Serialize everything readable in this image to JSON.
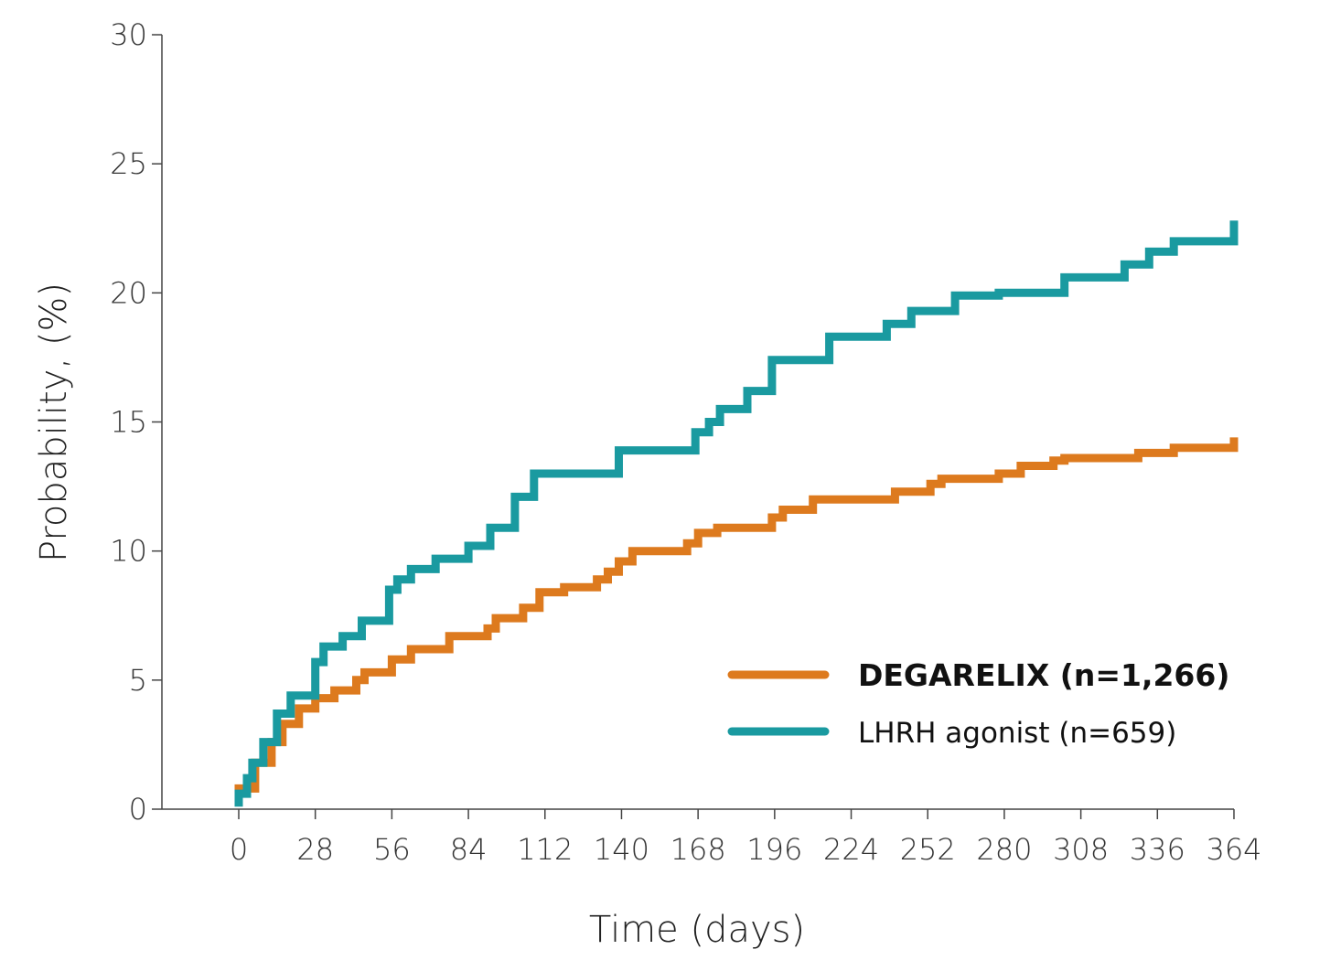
{
  "chart_data": {
    "type": "line",
    "step": true,
    "title": "",
    "xlabel": "Time (days)",
    "ylabel": "Probability, (%)",
    "xlim": [
      0,
      364
    ],
    "ylim": [
      0,
      30
    ],
    "xticks": [
      0,
      28,
      56,
      84,
      112,
      140,
      168,
      196,
      224,
      252,
      280,
      308,
      336,
      364
    ],
    "yticks": [
      0,
      5,
      10,
      15,
      20,
      25,
      30
    ],
    "grid": false,
    "legend_position": "bottom-right",
    "series": [
      {
        "name": "DEGARELIX (n=1,266)",
        "color": "#dd7a1e",
        "legend_bold": true,
        "points": [
          [
            0,
            0.3
          ],
          [
            0,
            0.8
          ],
          [
            6,
            0.8
          ],
          [
            6,
            1.8
          ],
          [
            12,
            1.8
          ],
          [
            12,
            2.6
          ],
          [
            16,
            2.6
          ],
          [
            16,
            3.3
          ],
          [
            22,
            3.3
          ],
          [
            22,
            3.9
          ],
          [
            28,
            3.9
          ],
          [
            28,
            4.3
          ],
          [
            35,
            4.3
          ],
          [
            35,
            4.6
          ],
          [
            43,
            4.6
          ],
          [
            43,
            5.0
          ],
          [
            46,
            5.0
          ],
          [
            46,
            5.3
          ],
          [
            56,
            5.3
          ],
          [
            56,
            5.8
          ],
          [
            63,
            5.8
          ],
          [
            63,
            6.2
          ],
          [
            77,
            6.2
          ],
          [
            77,
            6.7
          ],
          [
            91,
            6.7
          ],
          [
            91,
            7.0
          ],
          [
            94,
            7.0
          ],
          [
            94,
            7.4
          ],
          [
            104,
            7.4
          ],
          [
            104,
            7.8
          ],
          [
            110,
            7.8
          ],
          [
            110,
            8.4
          ],
          [
            119,
            8.4
          ],
          [
            119,
            8.6
          ],
          [
            131,
            8.6
          ],
          [
            131,
            8.9
          ],
          [
            135,
            8.9
          ],
          [
            135,
            9.2
          ],
          [
            139,
            9.2
          ],
          [
            139,
            9.6
          ],
          [
            144,
            9.6
          ],
          [
            144,
            10.0
          ],
          [
            164,
            10.0
          ],
          [
            164,
            10.3
          ],
          [
            168,
            10.3
          ],
          [
            168,
            10.7
          ],
          [
            175,
            10.7
          ],
          [
            175,
            10.9
          ],
          [
            195,
            10.9
          ],
          [
            195,
            11.3
          ],
          [
            199,
            11.3
          ],
          [
            199,
            11.6
          ],
          [
            210,
            11.6
          ],
          [
            210,
            12.0
          ],
          [
            240,
            12.0
          ],
          [
            240,
            12.3
          ],
          [
            253,
            12.3
          ],
          [
            253,
            12.6
          ],
          [
            257,
            12.6
          ],
          [
            257,
            12.8
          ],
          [
            278,
            12.8
          ],
          [
            278,
            13.0
          ],
          [
            286,
            13.0
          ],
          [
            286,
            13.3
          ],
          [
            298,
            13.3
          ],
          [
            298,
            13.5
          ],
          [
            302,
            13.5
          ],
          [
            302,
            13.6
          ],
          [
            329,
            13.6
          ],
          [
            329,
            13.8
          ],
          [
            342,
            13.8
          ],
          [
            342,
            14.0
          ],
          [
            364,
            14.0
          ],
          [
            364,
            14.4
          ]
        ]
      },
      {
        "name": "LHRH agonist (n=659)",
        "color": "#1a9aa0",
        "legend_bold": false,
        "points": [
          [
            0,
            0.1
          ],
          [
            0,
            0.6
          ],
          [
            3,
            0.6
          ],
          [
            3,
            1.2
          ],
          [
            5,
            1.2
          ],
          [
            5,
            1.8
          ],
          [
            9,
            1.8
          ],
          [
            9,
            2.6
          ],
          [
            14,
            2.6
          ],
          [
            14,
            3.7
          ],
          [
            19,
            3.7
          ],
          [
            19,
            4.4
          ],
          [
            28,
            4.4
          ],
          [
            28,
            5.7
          ],
          [
            31,
            5.7
          ],
          [
            31,
            6.3
          ],
          [
            38,
            6.3
          ],
          [
            38,
            6.7
          ],
          [
            45,
            6.7
          ],
          [
            45,
            7.3
          ],
          [
            55,
            7.3
          ],
          [
            55,
            8.5
          ],
          [
            58,
            8.5
          ],
          [
            58,
            8.9
          ],
          [
            63,
            8.9
          ],
          [
            63,
            9.3
          ],
          [
            72,
            9.3
          ],
          [
            72,
            9.7
          ],
          [
            84,
            9.7
          ],
          [
            84,
            10.2
          ],
          [
            92,
            10.2
          ],
          [
            92,
            10.9
          ],
          [
            101,
            10.9
          ],
          [
            101,
            12.1
          ],
          [
            108,
            12.1
          ],
          [
            108,
            13.0
          ],
          [
            139,
            13.0
          ],
          [
            139,
            13.9
          ],
          [
            167,
            13.9
          ],
          [
            167,
            14.6
          ],
          [
            172,
            14.6
          ],
          [
            172,
            15.0
          ],
          [
            176,
            15.0
          ],
          [
            176,
            15.5
          ],
          [
            186,
            15.5
          ],
          [
            186,
            16.2
          ],
          [
            195,
            16.2
          ],
          [
            195,
            17.4
          ],
          [
            216,
            17.4
          ],
          [
            216,
            18.3
          ],
          [
            237,
            18.3
          ],
          [
            237,
            18.8
          ],
          [
            246,
            18.8
          ],
          [
            246,
            19.3
          ],
          [
            262,
            19.3
          ],
          [
            262,
            19.9
          ],
          [
            278,
            19.9
          ],
          [
            278,
            20.0
          ],
          [
            302,
            20.0
          ],
          [
            302,
            20.6
          ],
          [
            324,
            20.6
          ],
          [
            324,
            21.1
          ],
          [
            333,
            21.1
          ],
          [
            333,
            21.6
          ],
          [
            342,
            21.6
          ],
          [
            342,
            22.0
          ],
          [
            364,
            22.0
          ],
          [
            364,
            22.8
          ]
        ]
      }
    ]
  }
}
